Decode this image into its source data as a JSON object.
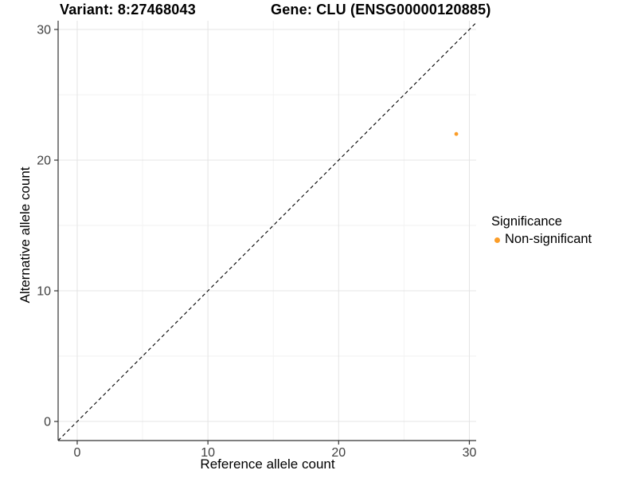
{
  "header": {
    "variant_title": "Variant: 8:27468043",
    "gene_title": "Gene: CLU (ENSG00000120885)"
  },
  "chart_data": {
    "type": "scatter",
    "xlabel": "Reference allele count",
    "ylabel": "Alternative allele count",
    "x_ticks": [
      0,
      10,
      20,
      30
    ],
    "y_ticks": [
      0,
      10,
      20,
      30
    ],
    "x_minor_ticks": [
      5,
      15,
      25
    ],
    "y_minor_ticks": [
      5,
      15,
      25
    ],
    "xlim": [
      -1.46,
      30.52
    ],
    "ylim": [
      -1.46,
      30.67
    ],
    "grid": true,
    "reference_line": {
      "type": "identity",
      "slope": 1,
      "intercept": 0,
      "style": "dashed",
      "color": "#000000"
    },
    "series": [
      {
        "name": "Non-significant",
        "color": "#FB9D28",
        "points": [
          [
            29,
            22
          ]
        ]
      }
    ],
    "legend": {
      "title": "Significance",
      "position": "right",
      "entries": [
        {
          "label": "Non-significant",
          "color": "#FB9D28"
        }
      ]
    }
  },
  "colors": {
    "axis_line": "#333333",
    "tick_text": "#404040",
    "grid_major": "#e4e4e4",
    "grid_minor": "#f2f2f2",
    "point_orange": "#FB9D28"
  }
}
